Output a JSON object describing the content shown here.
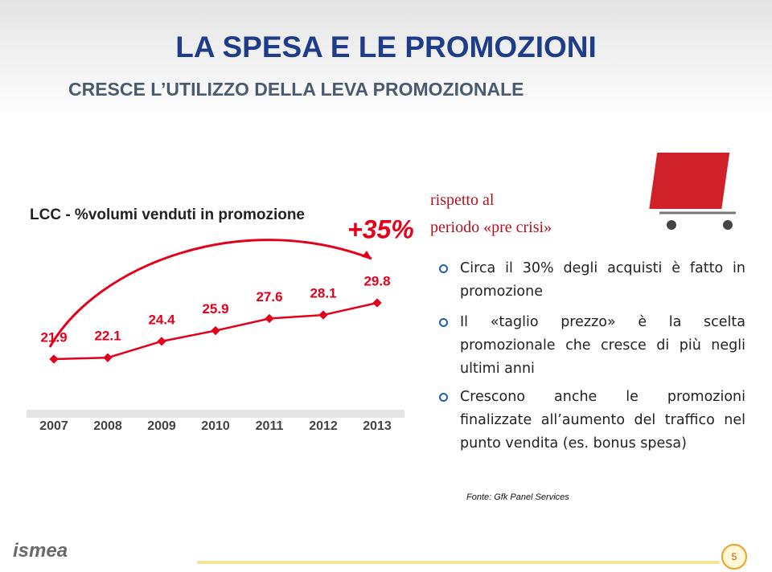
{
  "slide": {
    "title": "LA SPESA E LE PROMOZIONI",
    "subtitle": "CRESCE L’UTILIZZO DELLA LEVA PROMOZIONALE",
    "note_lines": [
      "rispetto al",
      "periodo «pre crisi»"
    ],
    "bullets": [
      "Circa il 30% degli acquisti è fatto in promozione",
      "Il «taglio prezzo» è la scelta promozionale che cresce di più negli ultimi anni",
      "Crescono anche le promozioni finalizzate all’aumento del traffico nel punto vendita (es. bonus spesa)"
    ],
    "source": "Fonte: Gfk Panel Services",
    "page_number": "5",
    "logo": "ismea"
  },
  "chart_data": {
    "type": "line",
    "title": "LCC - %volumi venduti in promozione",
    "annotation": "+35%",
    "categories": [
      "2007",
      "2008",
      "2009",
      "2010",
      "2011",
      "2012",
      "2013"
    ],
    "series": [
      {
        "name": "LCC",
        "color": "#e3001b",
        "values": [
          21.9,
          22.1,
          24.4,
          25.9,
          27.6,
          28.1,
          29.8
        ]
      }
    ]
  }
}
